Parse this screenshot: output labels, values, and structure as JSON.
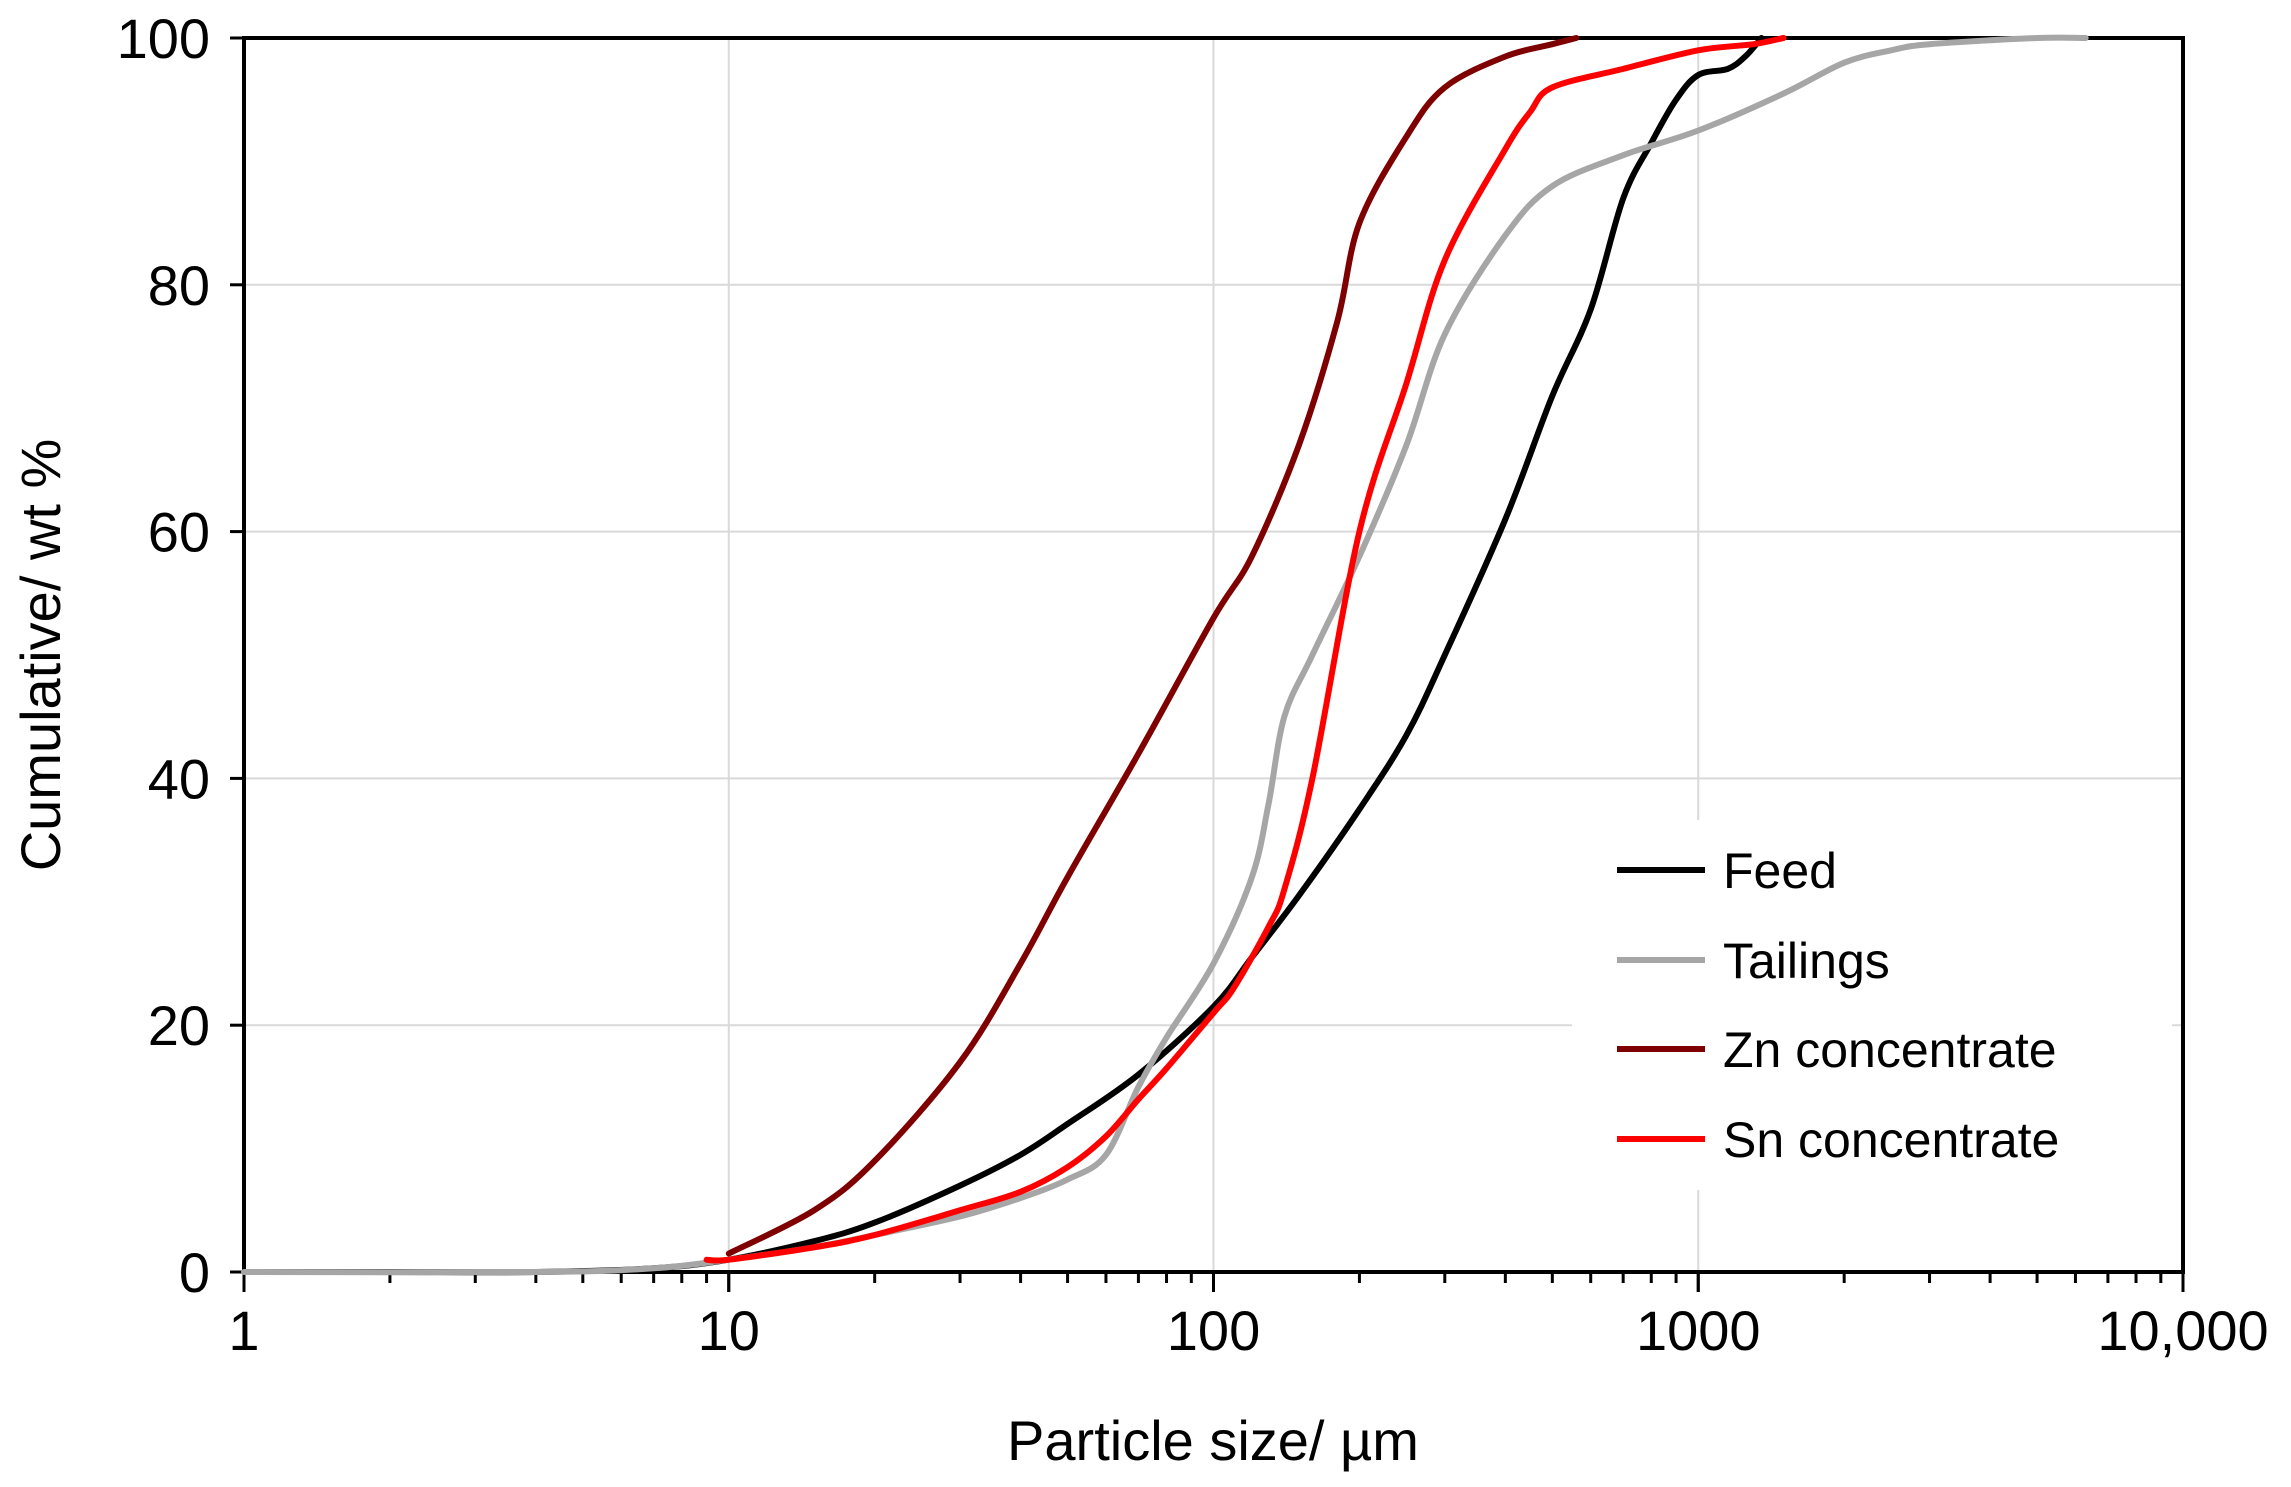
{
  "chart_data": {
    "type": "line",
    "title": "",
    "xlabel": "Particle size/ µm",
    "ylabel": "Cumulative/ wt %",
    "xscale": "log",
    "xlim": [
      1,
      10000
    ],
    "ylim": [
      0,
      100
    ],
    "xticks": [
      {
        "value": 1,
        "label": "1"
      },
      {
        "value": 10,
        "label": "10"
      },
      {
        "value": 100,
        "label": "100"
      },
      {
        "value": 1000,
        "label": "1000"
      },
      {
        "value": 10000,
        "label": "10,000"
      }
    ],
    "yticks": [
      {
        "value": 0,
        "label": "0"
      },
      {
        "value": 20,
        "label": "20"
      },
      {
        "value": 40,
        "label": "40"
      },
      {
        "value": 60,
        "label": "60"
      },
      {
        "value": 80,
        "label": "80"
      },
      {
        "value": 100,
        "label": "100"
      }
    ],
    "grid": true,
    "legend_position": "bottom-right",
    "series": [
      {
        "name": "Feed",
        "color": "#000000",
        "x": [
          1,
          2,
          4,
          7,
          10,
          15,
          20,
          30,
          40,
          50,
          70,
          100,
          120,
          150,
          200,
          250,
          300,
          400,
          500,
          600,
          700,
          800,
          900,
          1000,
          1150,
          1250,
          1350
        ],
        "y": [
          0,
          0,
          0,
          0.3,
          1,
          2.5,
          4,
          7,
          9.5,
          12,
          16,
          21.5,
          25.5,
          30.5,
          37.5,
          43.5,
          50,
          61,
          71,
          78,
          87,
          91.5,
          95,
          97,
          97.5,
          98.5,
          100
        ]
      },
      {
        "name": "Tailings",
        "color": "#a6a6a6",
        "x": [
          1,
          4,
          7,
          10,
          15,
          20,
          30,
          40,
          50,
          60,
          70,
          80,
          100,
          120,
          130,
          140,
          160,
          200,
          250,
          300,
          400,
          500,
          700,
          1000,
          1500,
          2000,
          2500,
          3000,
          5000,
          6300
        ],
        "y": [
          0,
          0,
          0.3,
          1,
          2,
          3,
          4.5,
          6,
          7.5,
          9.5,
          15,
          19,
          25,
          32,
          38,
          45,
          50,
          58,
          67,
          76,
          84,
          88,
          90.5,
          92.5,
          95.5,
          98,
          99,
          99.5,
          100,
          100
        ]
      },
      {
        "name": "Zn concentrate",
        "color": "#7f0000",
        "x": [
          10,
          15,
          20,
          30,
          40,
          50,
          70,
          100,
          120,
          150,
          180,
          200,
          250,
          300,
          400,
          500,
          560
        ],
        "y": [
          1.5,
          5,
          9,
          17,
          25,
          32,
          42,
          53,
          58,
          67,
          77,
          85,
          92,
          96,
          98.5,
          99.5,
          100
        ]
      },
      {
        "name": "Sn concentrate",
        "color": "#ff0000",
        "x": [
          9,
          10,
          15,
          20,
          30,
          40,
          50,
          60,
          70,
          80,
          100,
          110,
          130,
          140,
          160,
          200,
          250,
          300,
          400,
          450,
          500,
          700,
          1000,
          1300,
          1500
        ],
        "y": [
          1,
          1,
          2,
          3,
          5,
          6.5,
          8.5,
          11,
          14,
          16.5,
          21,
          23,
          28,
          31,
          40,
          60,
          72,
          82,
          91,
          94,
          96,
          97.5,
          99,
          99.5,
          100
        ]
      }
    ]
  }
}
